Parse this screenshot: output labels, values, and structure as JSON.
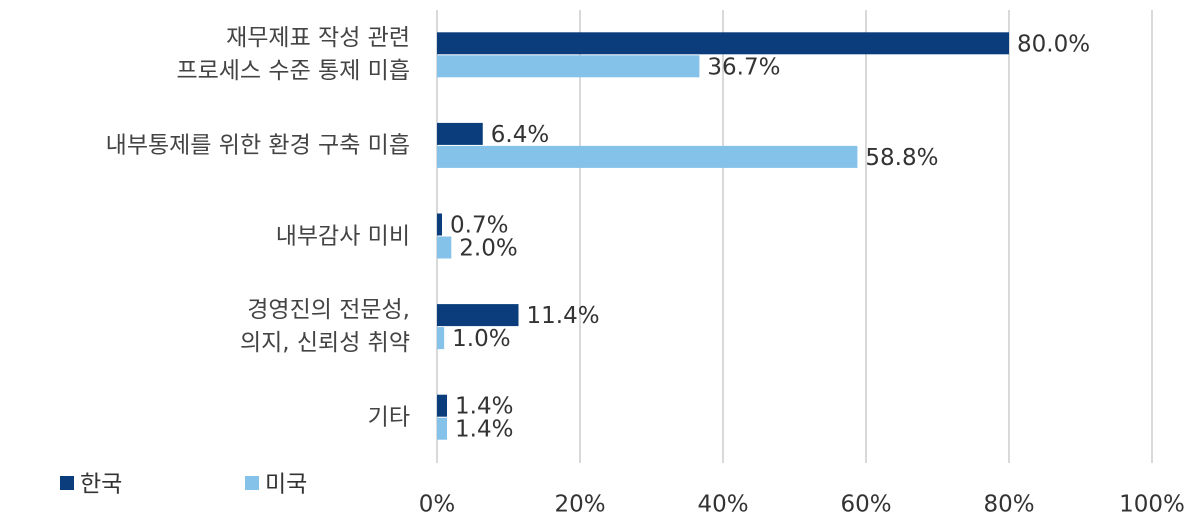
{
  "chart_data": {
    "type": "bar",
    "orientation": "horizontal",
    "categories": [
      "재무제표 작성 관련\n프로세스 수준 통제 미흡",
      "내부통제를 위한 환경 구축 미흡",
      "내부감사 미비",
      "경영진의 전문성,\n의지, 신뢰성 취약",
      "기타"
    ],
    "series": [
      {
        "name": "한국",
        "color": "#0b3d7c",
        "values": [
          80.0,
          6.4,
          0.7,
          11.4,
          1.4
        ],
        "value_labels": [
          "80.0%",
          "6.4%",
          "0.7%",
          "11.4%",
          "1.4%"
        ]
      },
      {
        "name": "미국",
        "color": "#84c2ea",
        "values": [
          36.7,
          58.8,
          2.0,
          1.0,
          1.4
        ],
        "value_labels": [
          "36.7%",
          "58.8%",
          "2.0%",
          "1.0%",
          "1.4%"
        ]
      }
    ],
    "xlim": [
      0,
      100
    ],
    "xticks": [
      {
        "value": 0,
        "label": "0%"
      },
      {
        "value": 20,
        "label": "20%"
      },
      {
        "value": 40,
        "label": "40%"
      },
      {
        "value": 60,
        "label": "60%"
      },
      {
        "value": 80,
        "label": "80%"
      },
      {
        "value": 100,
        "label": "100%"
      }
    ],
    "grid": true,
    "legend": "bottom-left"
  }
}
